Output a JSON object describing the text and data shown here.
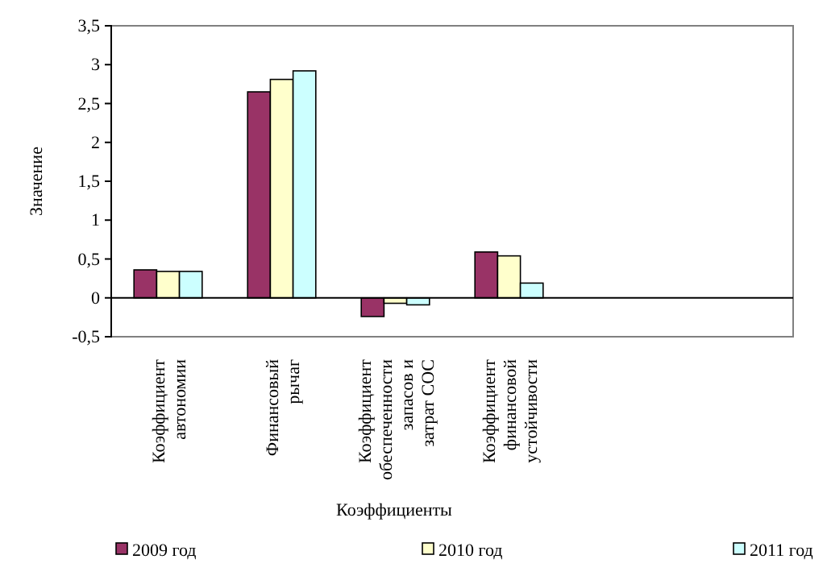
{
  "chart_data": {
    "type": "bar",
    "xlabel": "Коэффициенты",
    "ylabel": "Значение",
    "categories": [
      "Коэффициент автономии",
      "Финансовый рычаг",
      "Коэффициент обеспеченности запасов и затрат СОС",
      "Коэффициент финансовой устойчивости",
      null,
      null
    ],
    "series": [
      {
        "name": "2009 год",
        "color": "#993366",
        "values": [
          0.36,
          2.65,
          -0.24,
          0.59,
          null,
          null
        ]
      },
      {
        "name": "2010 год",
        "color": "#ffffcc",
        "values": [
          0.34,
          2.81,
          -0.07,
          0.54,
          null,
          null
        ]
      },
      {
        "name": "2011 год",
        "color": "#ccffff",
        "values": [
          0.34,
          2.92,
          -0.09,
          0.19,
          null,
          null
        ]
      }
    ],
    "ylim": [
      -0.5,
      3.5
    ],
    "yticks": [
      {
        "value": -0.5,
        "label": "-0,5"
      },
      0,
      {
        "value": 0.5,
        "label": "0,5"
      },
      1,
      {
        "value": 1.5,
        "label": "1,5"
      },
      2,
      {
        "value": 2.5,
        "label": "2,5"
      },
      3,
      {
        "value": 3.5,
        "label": "3,5"
      }
    ],
    "legend": "bottom"
  }
}
